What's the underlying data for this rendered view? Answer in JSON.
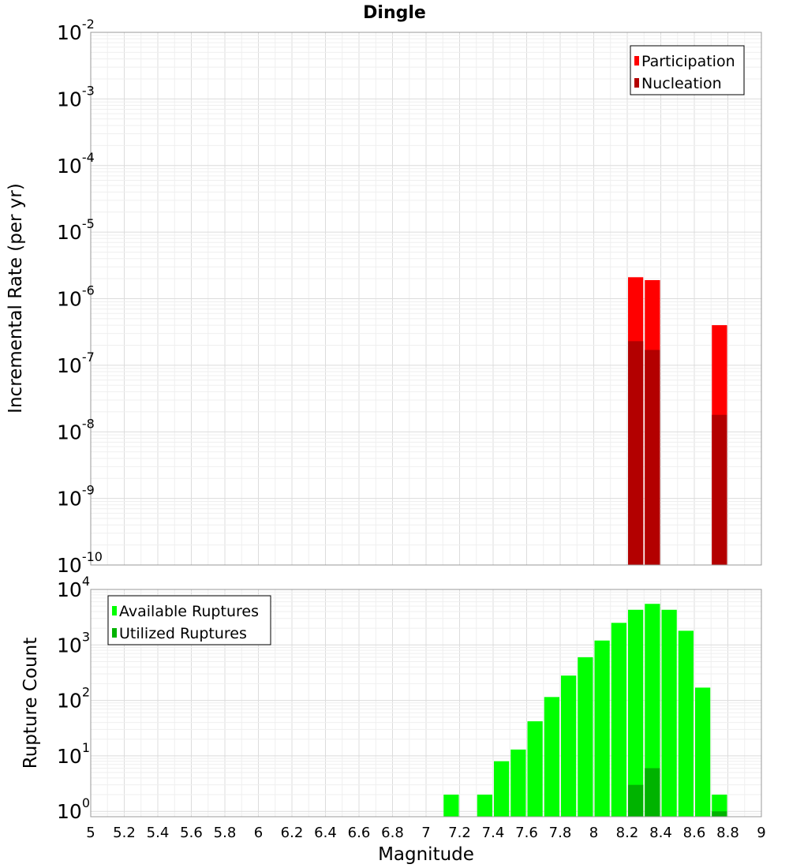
{
  "chart_data": [
    {
      "type": "bar",
      "title": "Dingle",
      "xlabel": "",
      "ylabel": "Incremental Rate (per yr)",
      "yscale": "log",
      "ylim": [
        1e-10,
        0.01
      ],
      "xlim": [
        5,
        9
      ],
      "y_tick_labels": [
        {
          "base": "10",
          "exp": "-2"
        },
        {
          "base": "10",
          "exp": "-3"
        },
        {
          "base": "10",
          "exp": "-4"
        },
        {
          "base": "10",
          "exp": "-5"
        },
        {
          "base": "10",
          "exp": "-6"
        },
        {
          "base": "10",
          "exp": "-7"
        },
        {
          "base": "10",
          "exp": "-8"
        },
        {
          "base": "10",
          "exp": "-9"
        },
        {
          "base": "10",
          "exp": "-10"
        }
      ],
      "bar_width": 0.1,
      "grid": true,
      "legend_position": "top-right",
      "series": [
        {
          "name": "Participation",
          "color": "#ff0000",
          "points": [
            {
              "x": 8.25,
              "y": 2.1e-06
            },
            {
              "x": 8.35,
              "y": 1.9e-06
            },
            {
              "x": 8.75,
              "y": 4e-07
            }
          ]
        },
        {
          "name": "Nucleation",
          "color": "#b30000",
          "points": [
            {
              "x": 8.25,
              "y": 2.3e-07
            },
            {
              "x": 8.35,
              "y": 1.7e-07
            },
            {
              "x": 8.75,
              "y": 1.8e-08
            }
          ]
        }
      ]
    },
    {
      "type": "bar",
      "title": "",
      "xlabel": "Magnitude",
      "ylabel": "Rupture Count",
      "yscale": "log",
      "ylim": [
        0.8,
        10000
      ],
      "xlim": [
        5,
        9
      ],
      "x_tick_labels": [
        "5",
        "5.2",
        "5.4",
        "5.6",
        "5.8",
        "6",
        "6.2",
        "6.4",
        "6.6",
        "6.8",
        "7",
        "7.2",
        "7.4",
        "7.6",
        "7.8",
        "8",
        "8.2",
        "8.4",
        "8.6",
        "8.8",
        "9"
      ],
      "y_tick_labels": [
        {
          "base": "10",
          "exp": "4"
        },
        {
          "base": "10",
          "exp": "3"
        },
        {
          "base": "10",
          "exp": "2"
        },
        {
          "base": "10",
          "exp": "1"
        },
        {
          "base": "10",
          "exp": "0"
        }
      ],
      "bar_width": 0.1,
      "grid": true,
      "legend_position": "top-left",
      "series": [
        {
          "name": "Available Ruptures",
          "color": "#00ff00",
          "points": [
            {
              "x": 7.15,
              "y": 2
            },
            {
              "x": 7.35,
              "y": 2
            },
            {
              "x": 7.45,
              "y": 8
            },
            {
              "x": 7.55,
              "y": 13
            },
            {
              "x": 7.65,
              "y": 42
            },
            {
              "x": 7.75,
              "y": 115
            },
            {
              "x": 7.85,
              "y": 280
            },
            {
              "x": 7.95,
              "y": 600
            },
            {
              "x": 8.05,
              "y": 1200
            },
            {
              "x": 8.15,
              "y": 2500
            },
            {
              "x": 8.25,
              "y": 4300
            },
            {
              "x": 8.35,
              "y": 5500
            },
            {
              "x": 8.45,
              "y": 4300
            },
            {
              "x": 8.55,
              "y": 1800
            },
            {
              "x": 8.65,
              "y": 170
            },
            {
              "x": 8.75,
              "y": 2
            }
          ]
        },
        {
          "name": "Utilized Ruptures",
          "color": "#00b300",
          "points": [
            {
              "x": 8.25,
              "y": 3
            },
            {
              "x": 8.35,
              "y": 6
            },
            {
              "x": 8.75,
              "y": 1
            }
          ]
        }
      ]
    }
  ]
}
